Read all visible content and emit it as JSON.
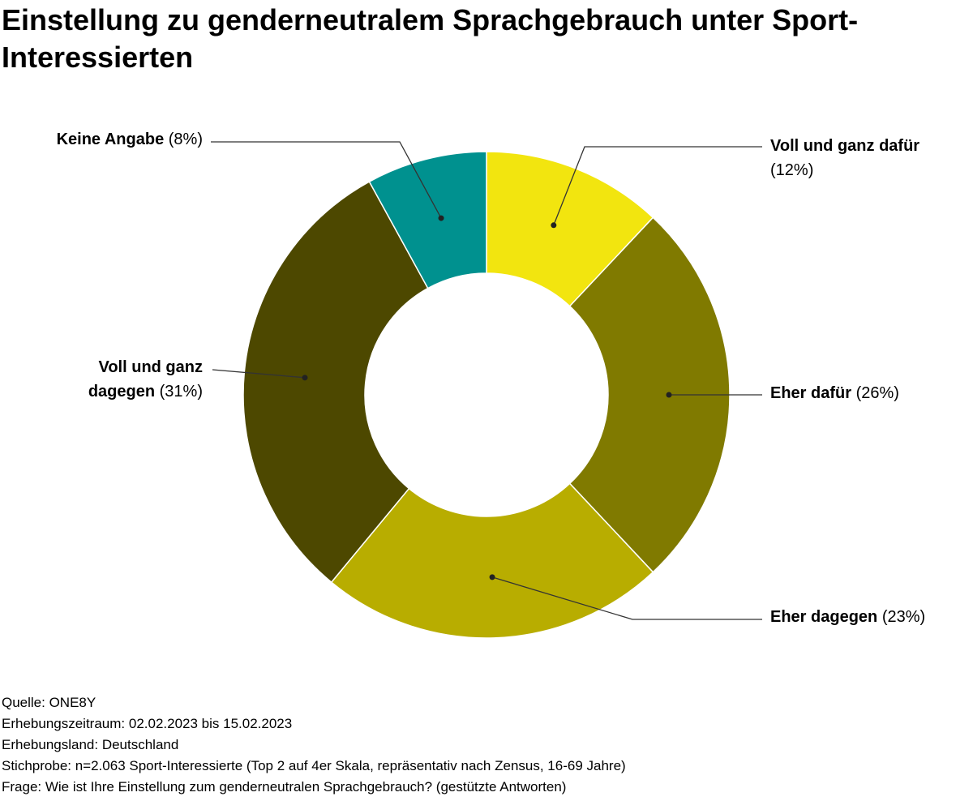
{
  "chart_data": {
    "type": "donut",
    "title": "Einstellung zu genderneutralem Sprachgebrauch unter Sport-Interessierten",
    "categories": [
      "Voll und ganz dafür",
      "Eher dafür",
      "Eher dagegen",
      "Voll und ganz dagegen",
      "Keine Angabe"
    ],
    "values": [
      12,
      26,
      23,
      31,
      8
    ],
    "value_labels": [
      "(12%)",
      "(26%)",
      "(23%)",
      "(31%)",
      "(8%)"
    ],
    "colors": [
      "#f2e50f",
      "#807a00",
      "#b8ad00",
      "#4d4800",
      "#00918f"
    ],
    "notes": [
      "Quelle: ONE8Y",
      "Erhebungszeitraum: 02.02.2023 bis 15.02.2023",
      "Erhebungsland: Deutschland",
      "Stichprobe: n=2.063 Sport-Interessierte (Top 2 auf 4er Skala, repräsentativ nach Zensus, 16-69 Jahre)",
      "Frage: Wie ist Ihre Einstellung zum genderneutralen Sprachgebrauch? (gestützte Antworten)"
    ]
  }
}
